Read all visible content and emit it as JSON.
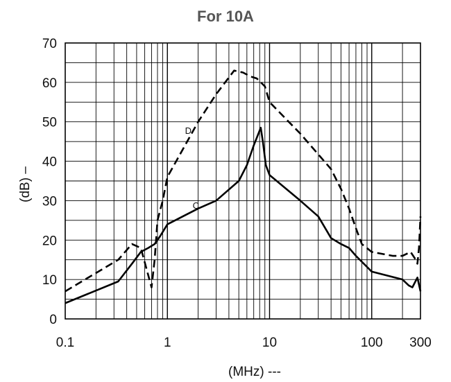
{
  "chart_data": {
    "type": "line",
    "title": "For 10A",
    "xlabel": "(MHz) ---",
    "ylabel": "(dB) –",
    "x_scale": "log",
    "xlim": [
      0.1,
      300
    ],
    "ylim": [
      0,
      70
    ],
    "x_ticks": [
      {
        "value": 0.1,
        "label": "0.1"
      },
      {
        "value": 1,
        "label": "1"
      },
      {
        "value": 10,
        "label": "10"
      },
      {
        "value": 100,
        "label": "100"
      },
      {
        "value": 300,
        "label": "300"
      }
    ],
    "y_ticks": [
      {
        "value": 0,
        "label": "0"
      },
      {
        "value": 10,
        "label": "10"
      },
      {
        "value": 20,
        "label": "20"
      },
      {
        "value": 30,
        "label": "30"
      },
      {
        "value": 40,
        "label": "40"
      },
      {
        "value": 50,
        "label": "50"
      },
      {
        "value": 60,
        "label": "60"
      },
      {
        "value": 70,
        "label": "70"
      }
    ],
    "grid": true,
    "series": [
      {
        "name": "D",
        "style": "dashed",
        "color": "#000000",
        "label_at": [
          1.6,
          47
        ],
        "points": [
          [
            0.1,
            7
          ],
          [
            0.33,
            15
          ],
          [
            0.45,
            19
          ],
          [
            0.55,
            18
          ],
          [
            0.62,
            13
          ],
          [
            0.7,
            8
          ],
          [
            0.75,
            15
          ],
          [
            0.8,
            25
          ],
          [
            0.9,
            30
          ],
          [
            1.0,
            36
          ],
          [
            2.0,
            50
          ],
          [
            3.0,
            57
          ],
          [
            4.5,
            63
          ],
          [
            5.5,
            62.5
          ],
          [
            6.5,
            61.5
          ],
          [
            7.5,
            61
          ],
          [
            9.0,
            59
          ],
          [
            10,
            55
          ],
          [
            20,
            47
          ],
          [
            40,
            38
          ],
          [
            50,
            33
          ],
          [
            60,
            28
          ],
          [
            70,
            23
          ],
          [
            80,
            19
          ],
          [
            100,
            17
          ],
          [
            160,
            16
          ],
          [
            200,
            16
          ],
          [
            240,
            17
          ],
          [
            270,
            15
          ],
          [
            280,
            14
          ],
          [
            290,
            18
          ],
          [
            300,
            26
          ]
        ]
      },
      {
        "name": "C",
        "style": "solid",
        "color": "#000000",
        "label_at": [
          1.9,
          28
        ],
        "points": [
          [
            0.1,
            4
          ],
          [
            0.33,
            9.5
          ],
          [
            0.45,
            14
          ],
          [
            0.55,
            17
          ],
          [
            0.65,
            18
          ],
          [
            0.75,
            19
          ],
          [
            0.85,
            21
          ],
          [
            1.0,
            24
          ],
          [
            2.0,
            28
          ],
          [
            3.0,
            30
          ],
          [
            5.0,
            35
          ],
          [
            6.0,
            39
          ],
          [
            7.0,
            44
          ],
          [
            8.2,
            48.5
          ],
          [
            8.6,
            45
          ],
          [
            9.2,
            39
          ],
          [
            10,
            36.5
          ],
          [
            20,
            30
          ],
          [
            30,
            26
          ],
          [
            40,
            20.5
          ],
          [
            50,
            19
          ],
          [
            60,
            18
          ],
          [
            70,
            16
          ],
          [
            100,
            12
          ],
          [
            200,
            10
          ],
          [
            230,
            8.5
          ],
          [
            250,
            8
          ],
          [
            280,
            10.5
          ],
          [
            300,
            7
          ]
        ]
      }
    ]
  }
}
